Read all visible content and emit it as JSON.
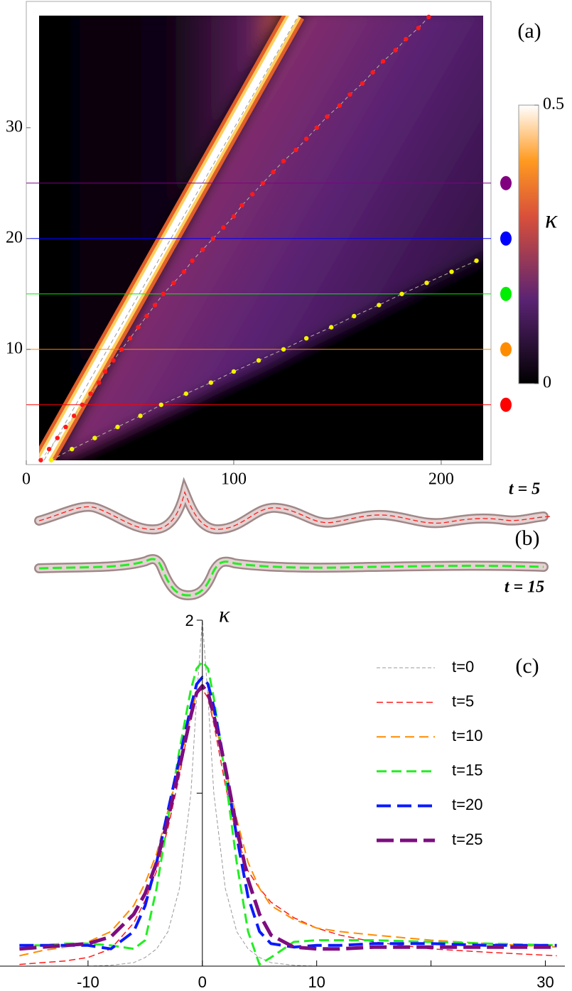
{
  "chart_data": [
    {
      "type": "scatter",
      "label": "(a)",
      "xlim": [
        0,
        224
      ],
      "ylim": [
        -0.4,
        41.4
      ],
      "xticks": [
        0,
        100,
        200
      ],
      "yticks": [
        10,
        20,
        30
      ],
      "series": [
        {
          "color": "#ff1a1a",
          "x": [
            7,
            11,
            15,
            19,
            23,
            27,
            31,
            35,
            38,
            42,
            46,
            50,
            54,
            58,
            62,
            66,
            71,
            76,
            80,
            85,
            90,
            95,
            100,
            104,
            109,
            114,
            119,
            124,
            130,
            135,
            140,
            145,
            151,
            156,
            162,
            167,
            172,
            178,
            183,
            189,
            194
          ],
          "y": [
            0,
            1,
            2,
            3,
            4,
            5,
            6,
            7,
            8,
            9,
            10,
            11,
            12,
            13,
            14,
            15,
            16,
            17,
            18,
            19,
            20,
            21,
            22,
            23,
            24,
            25,
            26,
            27,
            28,
            29,
            30,
            31,
            32,
            33,
            34,
            35,
            36,
            37,
            38,
            39,
            40
          ]
        },
        {
          "color": "#f2f200",
          "x": [
            12,
            22,
            33,
            44,
            55,
            65,
            77,
            89,
            100,
            112,
            124,
            135,
            147,
            158,
            170,
            181,
            193,
            205,
            217
          ],
          "y": [
            0,
            1,
            2,
            3,
            4,
            5,
            6,
            7,
            8,
            9,
            10,
            11,
            12,
            13,
            14,
            15,
            16,
            17,
            18
          ]
        }
      ],
      "colorbar": {
        "label": "κ",
        "lim": [
          0,
          0.5
        ],
        "ticks": [
          0,
          0.5
        ]
      },
      "time_lines": {
        "values": [
          5,
          10,
          15,
          20,
          25
        ],
        "colors": [
          "#ff0000",
          "#ff8c00",
          "#00ee00",
          "#0000ff",
          "#800080"
        ]
      }
    },
    {
      "type": "line",
      "label": "(c)",
      "y_label": "κ",
      "xlim": [
        -17.7,
        31.4
      ],
      "ylim": [
        0,
        2
      ],
      "xticks": [
        -10,
        0,
        10,
        30
      ],
      "yticks": [
        2
      ],
      "xtick_marks": [
        -10,
        0,
        10,
        20,
        30
      ],
      "ytick_marks": [
        1,
        2
      ],
      "x": [
        -16,
        -14,
        -12,
        -10,
        -8,
        -6,
        -5,
        -4,
        -3,
        -2,
        -1,
        -0.5,
        0,
        0.5,
        1,
        2,
        3,
        4,
        5,
        6,
        8,
        10,
        12,
        15,
        20,
        25,
        31
      ],
      "series": [
        {
          "name": "t=0",
          "color": "#999999",
          "width": 1,
          "dash": "5 3",
          "values": [
            0,
            0,
            0,
            0,
            0.005,
            0.02,
            0.05,
            0.1,
            0.2,
            0.45,
            1.0,
            1.55,
            2,
            1.55,
            1.0,
            0.45,
            0.2,
            0.1,
            0.05,
            0.02,
            0.005,
            0,
            0,
            0,
            0,
            0,
            0
          ]
        },
        {
          "name": "t=5",
          "color": "#ff1a1a",
          "width": 1.5,
          "dash": "9 5",
          "values": [
            0.01,
            0.02,
            0.03,
            0.05,
            0.1,
            0.25,
            0.38,
            0.55,
            0.8,
            1.1,
            1.45,
            1.58,
            1.6,
            1.55,
            1.4,
            1.05,
            0.75,
            0.55,
            0.45,
            0.37,
            0.28,
            0.22,
            0.18,
            0.14,
            0.1,
            0.08,
            0.06
          ]
        },
        {
          "name": "t=10",
          "color": "#ff8c00",
          "width": 2,
          "dash": "13 7",
          "values": [
            0.06,
            0.09,
            0.11,
            0.14,
            0.2,
            0.35,
            0.48,
            0.65,
            0.9,
            1.15,
            1.45,
            1.58,
            1.62,
            1.58,
            1.45,
            1.15,
            0.85,
            0.6,
            0.45,
            0.35,
            0.27,
            0.22,
            0.2,
            0.18,
            0.15,
            0.13,
            0.11
          ]
        },
        {
          "name": "t=15",
          "color": "#22ee22",
          "width": 3,
          "dash": "14 7",
          "values": [
            0.12,
            0.12,
            0.13,
            0.13,
            0.12,
            0.1,
            0.15,
            0.45,
            0.85,
            1.25,
            1.6,
            1.72,
            1.76,
            1.72,
            1.55,
            1.1,
            0.6,
            0.2,
            0.01,
            0.05,
            0.14,
            0.15,
            0.15,
            0.15,
            0.14,
            0.13,
            0.12
          ]
        },
        {
          "name": "t=20",
          "color": "#0a1aff",
          "width": 4,
          "dash": "20 9",
          "values": [
            0.12,
            0.12,
            0.12,
            0.12,
            0.1,
            0.2,
            0.35,
            0.6,
            0.9,
            1.2,
            1.5,
            1.63,
            1.67,
            1.63,
            1.5,
            1.15,
            0.75,
            0.4,
            0.2,
            0.13,
            0.11,
            0.12,
            0.12,
            0.13,
            0.13,
            0.12,
            0.12
          ]
        },
        {
          "name": "t=25",
          "color": "#7d0d80",
          "width": 5,
          "dash": "24 9",
          "values": [
            0.1,
            0.11,
            0.12,
            0.13,
            0.17,
            0.3,
            0.42,
            0.6,
            0.85,
            1.15,
            1.45,
            1.58,
            1.62,
            1.58,
            1.45,
            1.15,
            0.8,
            0.5,
            0.3,
            0.18,
            0.11,
            0.1,
            0.1,
            0.11,
            0.11,
            0.11,
            0.11
          ]
        }
      ]
    }
  ],
  "panel_b": {
    "label": "(b)",
    "rod_labels": [
      "t = 5",
      "t = 15"
    ]
  }
}
